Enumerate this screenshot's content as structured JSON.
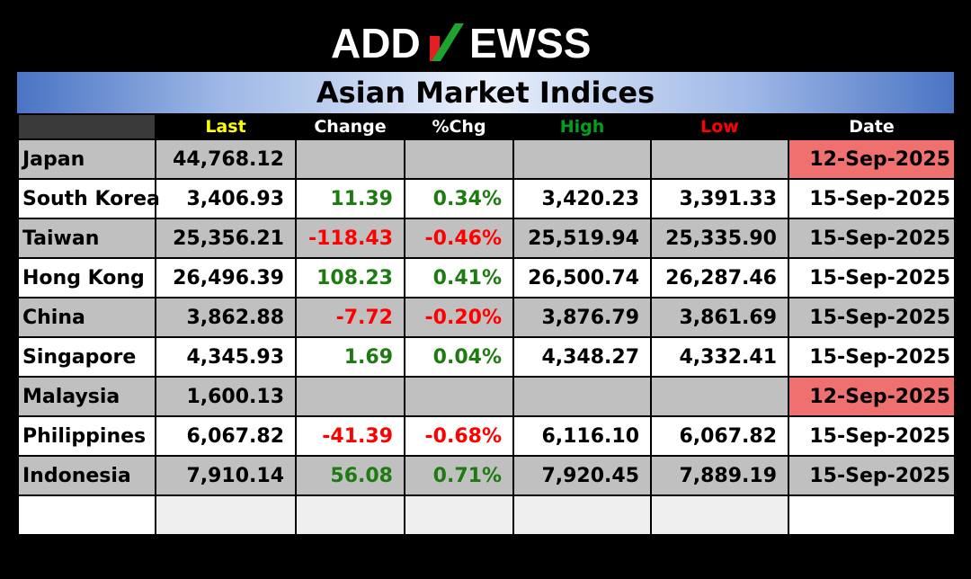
{
  "brand": {
    "logo_text": "ADDNEWSS",
    "logo_left": "ADD",
    "logo_mid": "N",
    "logo_right": "EWSS",
    "colors": {
      "text": "#ffffff",
      "accent_red": "#e31e24",
      "accent_green": "#1fa22e"
    }
  },
  "title": "Asian Market Indices",
  "columns": [
    "",
    "Last",
    "Change",
    "%Chg",
    "High",
    "Low",
    "Date"
  ],
  "rows": [
    {
      "country": "Japan",
      "last": "44,768.12",
      "change": "",
      "pct": "",
      "high": "",
      "low": "",
      "date": "12-Sep-2025",
      "dir": "",
      "stale": true
    },
    {
      "country": "South Korea",
      "last": "3,406.93",
      "change": "11.39",
      "pct": "0.34%",
      "high": "3,420.23",
      "low": "3,391.33",
      "date": "15-Sep-2025",
      "dir": "pos",
      "stale": false
    },
    {
      "country": "Taiwan",
      "last": "25,356.21",
      "change": "-118.43",
      "pct": "-0.46%",
      "high": "25,519.94",
      "low": "25,335.90",
      "date": "15-Sep-2025",
      "dir": "neg",
      "stale": false
    },
    {
      "country": "Hong Kong",
      "last": "26,496.39",
      "change": "108.23",
      "pct": "0.41%",
      "high": "26,500.74",
      "low": "26,287.46",
      "date": "15-Sep-2025",
      "dir": "pos",
      "stale": false
    },
    {
      "country": "China",
      "last": "3,862.88",
      "change": "-7.72",
      "pct": "-0.20%",
      "high": "3,876.79",
      "low": "3,861.69",
      "date": "15-Sep-2025",
      "dir": "neg",
      "stale": false
    },
    {
      "country": "Singapore",
      "last": "4,345.93",
      "change": "1.69",
      "pct": "0.04%",
      "high": "4,348.27",
      "low": "4,332.41",
      "date": "15-Sep-2025",
      "dir": "pos",
      "stale": false
    },
    {
      "country": "Malaysia",
      "last": "1,600.13",
      "change": "",
      "pct": "",
      "high": "",
      "low": "",
      "date": "12-Sep-2025",
      "dir": "",
      "stale": true
    },
    {
      "country": "Philippines",
      "last": "6,067.82",
      "change": "-41.39",
      "pct": "-0.68%",
      "high": "6,116.10",
      "low": "6,067.82",
      "date": "15-Sep-2025",
      "dir": "neg",
      "stale": false
    },
    {
      "country": "Indonesia",
      "last": "7,910.14",
      "change": "56.08",
      "pct": "0.71%",
      "high": "7,920.45",
      "low": "7,889.19",
      "date": "15-Sep-2025",
      "dir": "pos",
      "stale": false
    }
  ],
  "colors": {
    "background": "#000000",
    "header_last": "#ffff00",
    "header_high": "#00a020",
    "header_low": "#ff0000",
    "positive": "#1e7b12",
    "negative": "#ff0000",
    "row_shade": "#c0c0c0",
    "stale_date": "#f07070"
  }
}
